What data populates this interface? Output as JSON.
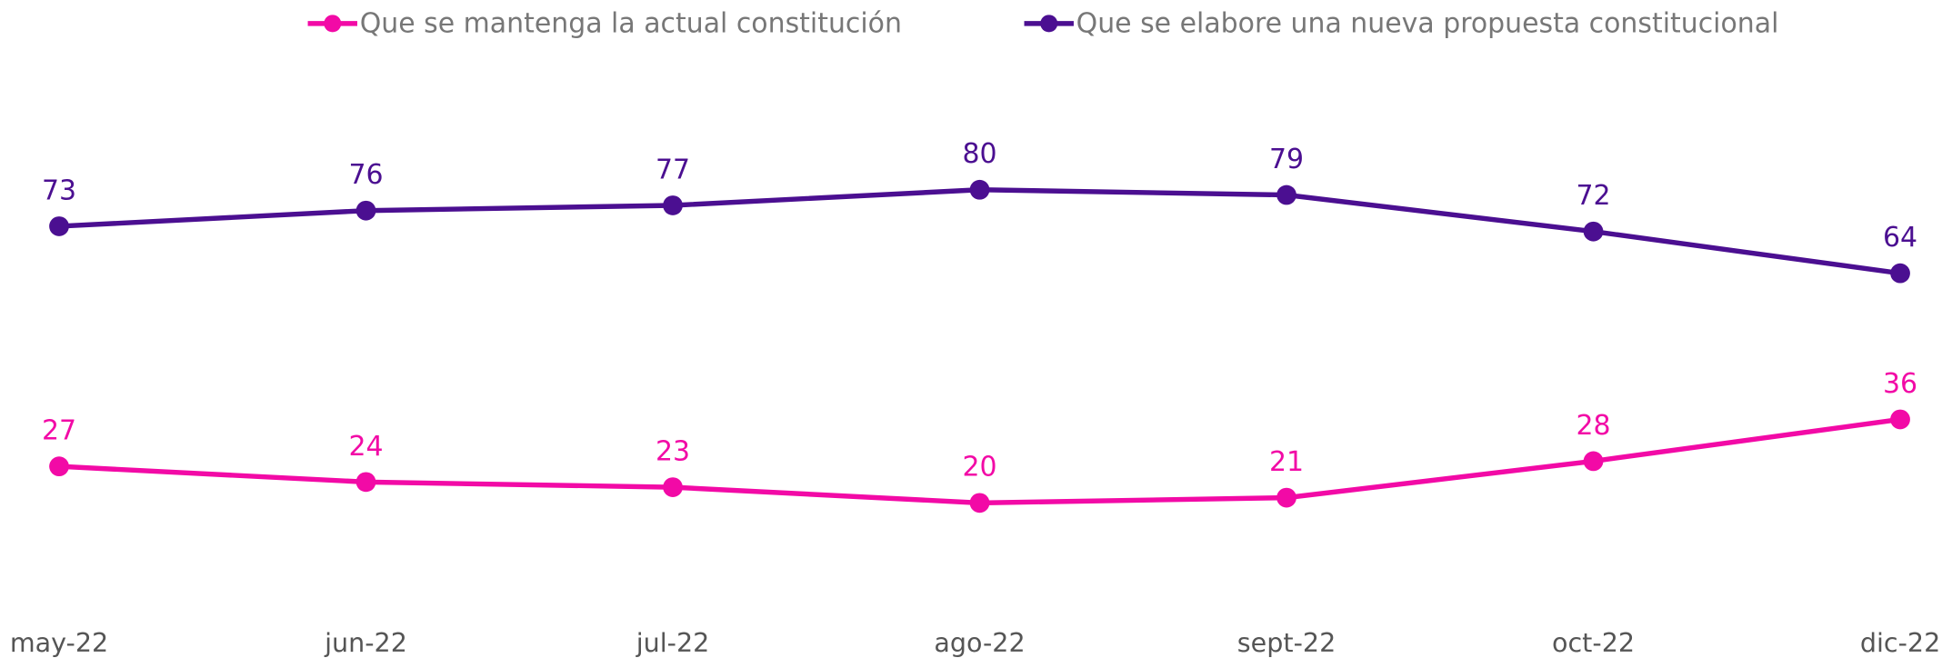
{
  "chart_data": {
    "type": "line",
    "categories": [
      "may-22",
      "jun-22",
      "jul-22",
      "ago-22",
      "sept-22",
      "oct-22",
      "dic-22"
    ],
    "series": [
      {
        "name": "Que se mantenga la actual constitución",
        "color": "#f20aa6",
        "values": [
          27,
          24,
          23,
          20,
          21,
          28,
          36
        ]
      },
      {
        "name": "Que se elabore una nueva propuesta constitucional",
        "color": "#4b0f91",
        "values": [
          73,
          76,
          77,
          80,
          79,
          72,
          64
        ]
      }
    ],
    "ylim": [
      0,
      100
    ],
    "legend": "top"
  }
}
